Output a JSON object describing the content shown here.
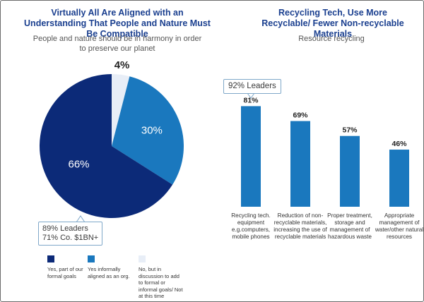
{
  "chart_data": [
    {
      "type": "pie",
      "title": "Virtually All Are Aligned with an Understanding That People and Nature Must Be Compatible",
      "subtitle": "People and nature should be in harmony in order to preserve our planet",
      "slices": [
        {
          "label": "Yes, part of our formal goals",
          "value": 66,
          "display": "66%",
          "color": "#0c2a78"
        },
        {
          "label": "Yes informally aligned as an org.",
          "value": 30,
          "display": "30%",
          "color": "#1a78be"
        },
        {
          "label": "No, but in discussion to add to formal or informal goals/ Not at this time",
          "value": 4,
          "display": "4%",
          "color": "#e8eef7"
        }
      ],
      "callout": {
        "line1": "89% Leaders",
        "line2": "71% Co. $1BN+"
      },
      "legend_placement": "bottom"
    },
    {
      "type": "bar",
      "title": "Recycling Tech, Use More Recyclable/ Fewer Non-recyclable Materials",
      "subtitle": "Resource recycling",
      "categories": [
        "Recycling tech. equipment e.g.computers, mobile phones",
        "Reduction of non-recyclable materials, increasing the use of recyclable materials",
        "Proper treatment, storage and management of hazardous waste",
        "Appropriate management of water/other natural resources"
      ],
      "values": [
        81,
        69,
        57,
        46
      ],
      "value_labels": [
        "81%",
        "69%",
        "57%",
        "46%"
      ],
      "ylim": [
        0,
        100
      ],
      "color": "#1a78be",
      "grid": false,
      "callout": "92% Leaders"
    }
  ]
}
